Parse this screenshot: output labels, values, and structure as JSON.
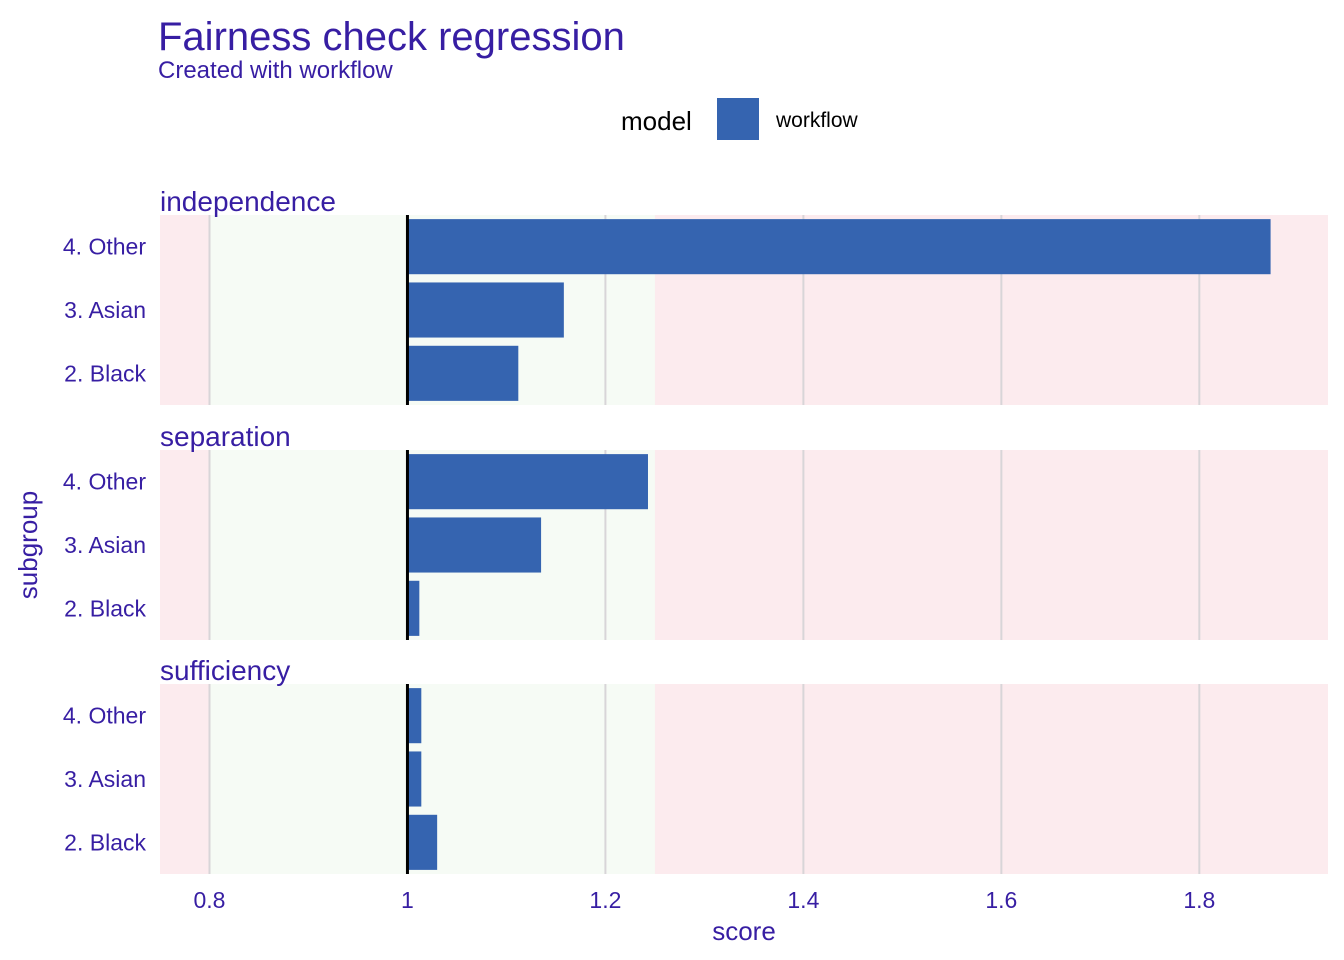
{
  "chart_data": {
    "type": "bar",
    "orientation": "horizontal",
    "title": "Fairness check regression",
    "subtitle": "Created with workflow",
    "xlabel": "score",
    "ylabel": "subgroup",
    "xlim": [
      0.75,
      1.93
    ],
    "x_ticks": [
      "0.8",
      "1",
      "1.2",
      "1.4",
      "1.6",
      "1.8"
    ],
    "x_tick_values": [
      0.8,
      1.0,
      1.2,
      1.4,
      1.6,
      1.8
    ],
    "baseline": 1,
    "acceptable_range": [
      0.8,
      1.25
    ],
    "legend": {
      "title": "model",
      "position": "top",
      "entries": [
        "workflow"
      ]
    },
    "colors": {
      "bar": "#3564b0",
      "text": "#371ea3",
      "green_zone": "#f6fbf5",
      "red_zone": "#fcebee",
      "grid": "#d8d5d8"
    },
    "grid": true,
    "categories": [
      "4. Other",
      "3. Asian",
      "2. Black"
    ],
    "panels": [
      {
        "name": "independence",
        "series": [
          {
            "name": "workflow",
            "values": [
              1.872,
              1.158,
              1.112
            ]
          }
        ]
      },
      {
        "name": "separation",
        "series": [
          {
            "name": "workflow",
            "values": [
              1.243,
              1.135,
              1.012
            ]
          }
        ]
      },
      {
        "name": "sufficiency",
        "series": [
          {
            "name": "workflow",
            "values": [
              1.014,
              1.014,
              1.03
            ]
          }
        ]
      }
    ]
  }
}
